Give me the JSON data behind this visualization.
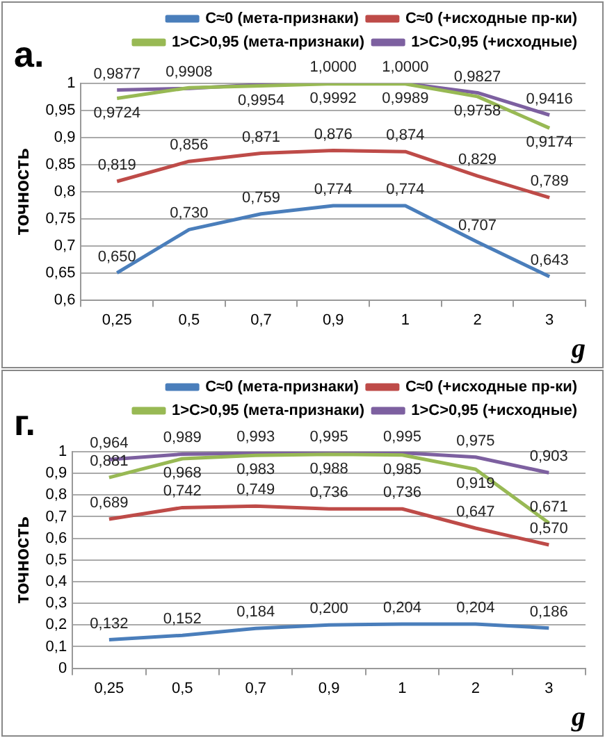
{
  "chart_data": [
    {
      "type": "line",
      "title": "а.",
      "xlabel": "g",
      "ylabel": "точность",
      "categories": [
        "0,25",
        "0,5",
        "0,7",
        "0,9",
        "1",
        "2",
        "3"
      ],
      "series": [
        {
          "name": "C≈0 (мета-признаки)",
          "color": "#4a7ebb",
          "values": [
            0.65,
            0.73,
            0.759,
            0.774,
            0.774,
            0.707,
            0.643
          ],
          "value_labels": [
            "0,650",
            "0,730",
            "0,759",
            "0,774",
            "0,774",
            "0,707",
            "0,643"
          ]
        },
        {
          "name": "C≈0 (+исходные пр-ки)",
          "color": "#be4b48",
          "values": [
            0.819,
            0.856,
            0.871,
            0.876,
            0.874,
            0.829,
            0.789
          ],
          "value_labels": [
            "0,819",
            "0,856",
            "0,871",
            "0,876",
            "0,874",
            "0,829",
            "0,789"
          ]
        },
        {
          "name": "1>C>0,95 (мета-признаки)",
          "color": "#98b954",
          "values": [
            0.9724,
            0.992,
            0.9954,
            0.9992,
            0.9989,
            0.9758,
            0.9174
          ],
          "value_labels": [
            "0,9724",
            null,
            "0,9954",
            "0,9992",
            "0,9989",
            "0,9758",
            "0,9174"
          ]
        },
        {
          "name": "1>C>0,95 (+исходные)",
          "color": "#7d60a0",
          "values": [
            0.9877,
            0.9908,
            0.998,
            1.0,
            1.0,
            0.9827,
            0.9416
          ],
          "value_labels": [
            "0,9877",
            "0,9908",
            null,
            "1,0000",
            "1,0000",
            "0,9827",
            "0,9416"
          ]
        }
      ],
      "ylim": [
        0.6,
        1
      ],
      "yticks": [
        {
          "value": 0.6,
          "label": "0,6"
        },
        {
          "value": 0.65,
          "label": "0,65"
        },
        {
          "value": 0.7,
          "label": "0,7"
        },
        {
          "value": 0.75,
          "label": "0,75"
        },
        {
          "value": 0.8,
          "label": "0,8"
        },
        {
          "value": 0.85,
          "label": "0,85"
        },
        {
          "value": 0.9,
          "label": "0,9"
        },
        {
          "value": 0.95,
          "label": "0,95"
        },
        {
          "value": 1,
          "label": "1"
        }
      ],
      "grid": "y",
      "legend": "top",
      "marker": "none",
      "line_style": "solid"
    },
    {
      "type": "line",
      "title": "г.",
      "xlabel": "g",
      "ylabel": "точность",
      "categories": [
        "0,25",
        "0,5",
        "0,7",
        "0,9",
        "1",
        "2",
        "3"
      ],
      "series": [
        {
          "name": "C≈0 (мета-признаки)",
          "color": "#4a7ebb",
          "values": [
            0.132,
            0.152,
            0.184,
            0.2,
            0.204,
            0.204,
            0.186
          ],
          "value_labels": [
            "0,132",
            "0,152",
            "0,184",
            "0,200",
            "0,204",
            "0,204",
            "0,186"
          ]
        },
        {
          "name": "C≈0 (+исходные пр-ки)",
          "color": "#be4b48",
          "values": [
            0.689,
            0.742,
            0.749,
            0.736,
            0.736,
            0.647,
            0.57
          ],
          "value_labels": [
            "0,689",
            "0,742",
            "0,749",
            "0,736",
            "0,736",
            "0,647",
            "0,570"
          ]
        },
        {
          "name": "1>C>0,95 (мета-признаки)",
          "color": "#98b954",
          "values": [
            0.881,
            0.968,
            0.983,
            0.988,
            0.985,
            0.919,
            0.671
          ],
          "value_labels": [
            "0,881",
            "0,968",
            "0,983",
            "0,988",
            "0,985",
            "0,919",
            "0,671"
          ]
        },
        {
          "name": "1>C>0,95 (+исходные)",
          "color": "#7d60a0",
          "values": [
            0.964,
            0.989,
            0.993,
            0.995,
            0.995,
            0.975,
            0.903
          ],
          "value_labels": [
            "0,964",
            "0,989",
            "0,993",
            "0,995",
            "0,995",
            "0,975",
            "0,903"
          ]
        }
      ],
      "ylim": [
        0,
        1
      ],
      "yticks": [
        {
          "value": 0,
          "label": "0"
        },
        {
          "value": 0.1,
          "label": "0,1"
        },
        {
          "value": 0.2,
          "label": "0,2"
        },
        {
          "value": 0.3,
          "label": "0,3"
        },
        {
          "value": 0.4,
          "label": "0,4"
        },
        {
          "value": 0.5,
          "label": "0,5"
        },
        {
          "value": 0.6,
          "label": "0,6"
        },
        {
          "value": 0.7,
          "label": "0,7"
        },
        {
          "value": 0.8,
          "label": "0,8"
        },
        {
          "value": 0.9,
          "label": "0,9"
        },
        {
          "value": 1,
          "label": "1"
        }
      ],
      "grid": "y",
      "legend": "top",
      "marker": "none",
      "line_style": "solid"
    }
  ]
}
